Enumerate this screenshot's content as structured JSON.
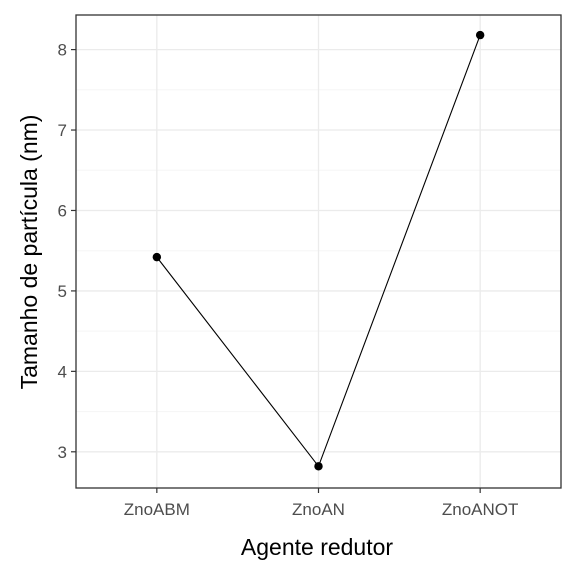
{
  "chart_data": {
    "type": "line",
    "categories": [
      "ZnoABM",
      "ZnoAN",
      "ZnoANOT"
    ],
    "values": [
      5.42,
      2.82,
      8.18
    ],
    "xlabel": "Agente redutor",
    "ylabel": "Tamanho de partícula (nm)",
    "ylim": [
      2.55,
      8.43
    ],
    "yticks": [
      3,
      4,
      5,
      6,
      7,
      8
    ],
    "grid": true,
    "legend": "none",
    "colors": {
      "line": "#000000",
      "point": "#000000",
      "grid_major": "#ebebeb",
      "grid_minor": "#f5f5f5",
      "panel_border": "#333333",
      "tick_text": "#4d4d4d"
    }
  }
}
